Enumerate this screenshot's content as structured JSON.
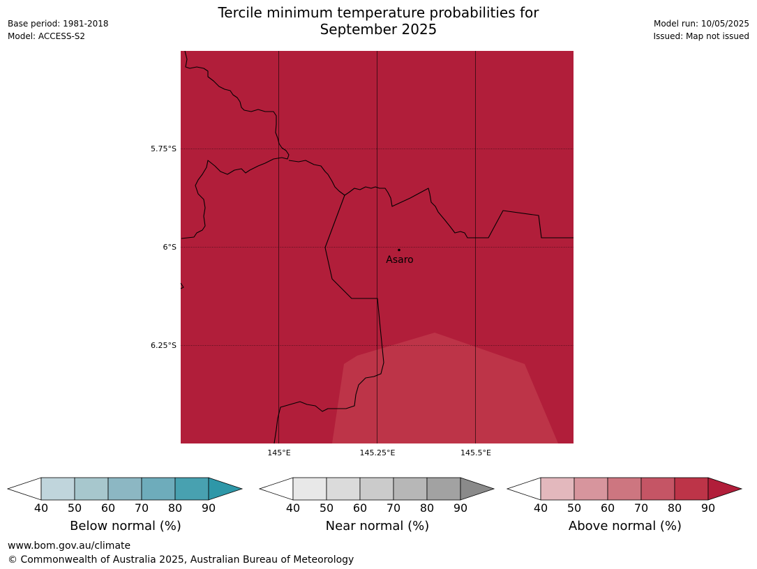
{
  "header": {
    "title_line1": "Tercile minimum temperature probabilities for",
    "title_line2": "September 2025",
    "base_period": "Base period: 1981-2018",
    "model": "Model: ACCESS-S2",
    "model_run": "Model run: 10/05/2025",
    "issued": "Issued: Map not issued"
  },
  "map": {
    "latitude_labels": [
      "5.75°S",
      "6°S",
      "6.25°S"
    ],
    "longitude_labels": [
      "145°E",
      "145.25°E",
      "145.5°E"
    ],
    "place": {
      "name": "Asaro"
    },
    "colors": {
      "above_90": "#b11e3a",
      "above_80": "#bd3448",
      "graticule": "#000000",
      "boundary": "#000000"
    }
  },
  "colorbars": [
    {
      "name": "below",
      "label": "Below normal (%)",
      "ticks": [
        "40",
        "50",
        "60",
        "70",
        "80",
        "90"
      ],
      "colors": [
        "#ffffff",
        "#c0d5dc",
        "#a7c7cd",
        "#8cb7c3",
        "#6eacbb",
        "#48a1b0",
        "#2e97a8"
      ]
    },
    {
      "name": "near",
      "label": "Near normal (%)",
      "ticks": [
        "40",
        "50",
        "60",
        "70",
        "80",
        "90"
      ],
      "colors": [
        "#ffffff",
        "#e8e8e8",
        "#dbdbdb",
        "#cbcbcb",
        "#b7b7b7",
        "#a2a2a2",
        "#8a8a8a"
      ]
    },
    {
      "name": "above",
      "label": "Above normal (%)",
      "ticks": [
        "40",
        "50",
        "60",
        "70",
        "80",
        "90"
      ],
      "colors": [
        "#ffffff",
        "#e3b8bd",
        "#d7959d",
        "#cd7680",
        "#c55565",
        "#bd3448",
        "#b11e3a"
      ]
    }
  ],
  "footer": {
    "website": "www.bom.gov.au/climate",
    "copyright": "© Commonwealth of Australia 2025, Australian Bureau of Meteorology"
  }
}
